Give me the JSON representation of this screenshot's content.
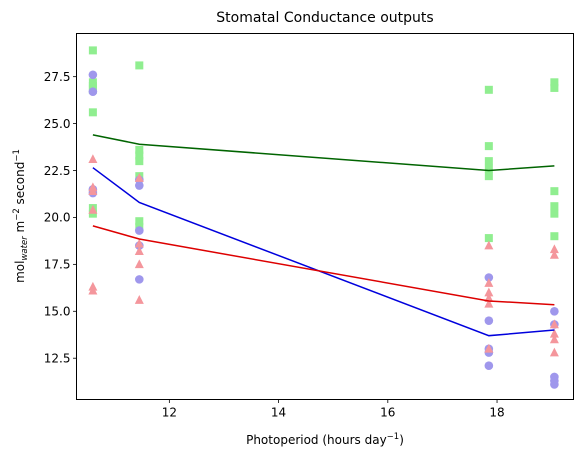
{
  "chart_data": {
    "type": "scatter",
    "title": "Stomatal Conductance outputs",
    "xlabel_main": "Photoperiod (hours day",
    "xlabel_sup": "−1",
    "xlabel_end": ")",
    "ylabel_main": "mol",
    "ylabel_sub": "water",
    "ylabel_m": " m",
    "ylabel_sup1": "−2",
    "ylabel_sec": " second",
    "ylabel_sup2": "−1",
    "xlim": [
      10.3,
      19.4
    ],
    "ylim": [
      10.3,
      29.8
    ],
    "xticks": [
      12,
      14,
      16,
      18
    ],
    "xtick_labels": [
      "12",
      "14",
      "16",
      "18"
    ],
    "yticks": [
      12.5,
      15.0,
      17.5,
      20.0,
      22.5,
      25.0,
      27.5
    ],
    "ytick_labels": [
      "12.5",
      "15.0",
      "17.5",
      "20.0",
      "22.5",
      "25.0",
      "27.5"
    ],
    "grid": false,
    "scatter_series": [
      {
        "marker": "square",
        "color": "#90ee90",
        "points": [
          [
            10.6,
            28.9
          ],
          [
            10.6,
            27.2
          ],
          [
            10.6,
            27.0
          ],
          [
            10.6,
            26.8
          ],
          [
            10.6,
            25.6
          ],
          [
            10.6,
            20.5
          ],
          [
            10.6,
            20.2
          ],
          [
            11.45,
            28.1
          ],
          [
            11.45,
            23.6
          ],
          [
            11.45,
            23.3
          ],
          [
            11.45,
            23.0
          ],
          [
            11.45,
            22.2
          ],
          [
            11.45,
            19.8
          ],
          [
            11.45,
            19.5
          ],
          [
            17.85,
            26.8
          ],
          [
            17.85,
            23.8
          ],
          [
            17.85,
            23.0
          ],
          [
            17.85,
            22.6
          ],
          [
            17.85,
            22.2
          ],
          [
            17.85,
            18.9
          ],
          [
            19.05,
            27.2
          ],
          [
            19.05,
            26.9
          ],
          [
            19.05,
            21.4
          ],
          [
            19.05,
            20.6
          ],
          [
            19.05,
            20.2
          ],
          [
            19.05,
            19.0
          ]
        ]
      },
      {
        "marker": "circle",
        "color": "#9f97ec",
        "points": [
          [
            10.6,
            27.6
          ],
          [
            10.6,
            26.7
          ],
          [
            10.6,
            21.5
          ],
          [
            10.6,
            21.3
          ],
          [
            11.45,
            22.0
          ],
          [
            11.45,
            21.7
          ],
          [
            11.45,
            19.3
          ],
          [
            11.45,
            18.5
          ],
          [
            11.45,
            16.7
          ],
          [
            17.85,
            16.8
          ],
          [
            17.85,
            14.5
          ],
          [
            17.85,
            13.0
          ],
          [
            17.85,
            12.8
          ],
          [
            17.85,
            12.1
          ],
          [
            19.05,
            15.0
          ],
          [
            19.05,
            14.3
          ],
          [
            19.05,
            11.5
          ],
          [
            19.05,
            11.3
          ],
          [
            19.05,
            11.1
          ]
        ]
      },
      {
        "marker": "triangle",
        "color": "#f4969c",
        "points": [
          [
            10.6,
            23.1
          ],
          [
            10.6,
            21.6
          ],
          [
            10.6,
            21.4
          ],
          [
            10.6,
            20.4
          ],
          [
            10.6,
            16.3
          ],
          [
            10.6,
            16.1
          ],
          [
            11.45,
            22.1
          ],
          [
            11.45,
            18.6
          ],
          [
            11.45,
            18.2
          ],
          [
            11.45,
            17.5
          ],
          [
            11.45,
            15.6
          ],
          [
            17.85,
            18.5
          ],
          [
            17.85,
            16.5
          ],
          [
            17.85,
            16.0
          ],
          [
            17.85,
            15.7
          ],
          [
            17.85,
            15.4
          ],
          [
            17.85,
            13.0
          ],
          [
            19.05,
            18.3
          ],
          [
            19.05,
            18.0
          ],
          [
            19.05,
            14.3
          ],
          [
            19.05,
            13.8
          ],
          [
            19.05,
            13.5
          ],
          [
            19.05,
            12.8
          ]
        ]
      }
    ],
    "line_series": [
      {
        "color": "#006400",
        "x": [
          10.6,
          11.45,
          17.85,
          19.05
        ],
        "y": [
          24.4,
          23.9,
          22.5,
          22.75
        ]
      },
      {
        "color": "#0000dd",
        "x": [
          10.6,
          11.45,
          17.85,
          19.05
        ],
        "y": [
          22.65,
          20.8,
          13.7,
          14.0
        ]
      },
      {
        "color": "#dd0000",
        "x": [
          10.6,
          11.45,
          17.85,
          19.05
        ],
        "y": [
          19.55,
          18.85,
          15.55,
          15.35
        ]
      }
    ]
  }
}
